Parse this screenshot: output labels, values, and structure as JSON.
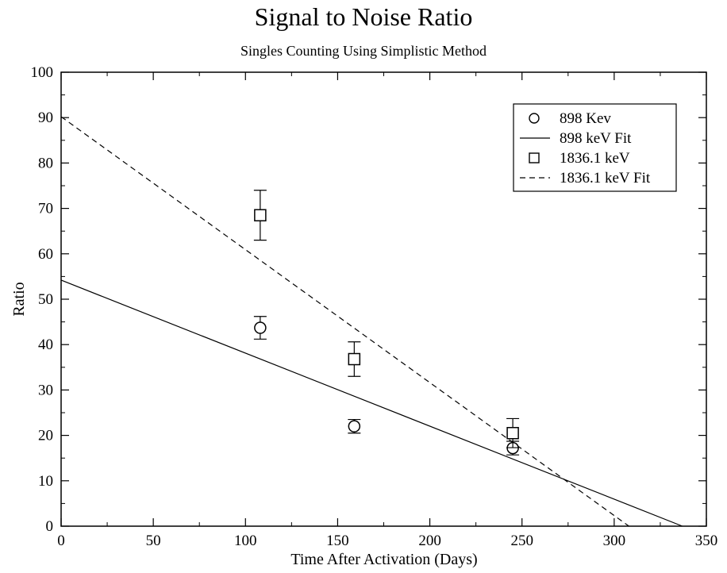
{
  "chart_data": {
    "type": "scatter",
    "title": "Signal to Noise Ratio",
    "subtitle": "Singles Counting Using Simplistic Method",
    "xlabel": "Time After Activation (Days)",
    "ylabel": "Ratio",
    "xlim": [
      0,
      350
    ],
    "ylim": [
      0,
      100
    ],
    "x_ticks": [
      0,
      50,
      100,
      150,
      200,
      250,
      300,
      350
    ],
    "y_ticks": [
      0,
      10,
      20,
      30,
      40,
      50,
      60,
      70,
      80,
      90,
      100
    ],
    "grid": false,
    "legend_position": "top-right",
    "series": [
      {
        "name": "898 Kev",
        "marker": "circle",
        "line": "none",
        "x": [
          108,
          159,
          245
        ],
        "y": [
          43.7,
          22.0,
          17.2
        ],
        "error": [
          2.5,
          1.5,
          1.5
        ]
      },
      {
        "name": "898 keV Fit",
        "marker": "none",
        "line": "solid",
        "x": [
          0,
          337
        ],
        "y": [
          54.2,
          0
        ]
      },
      {
        "name": "1836.1 keV",
        "marker": "square",
        "line": "none",
        "x": [
          108,
          159,
          245
        ],
        "y": [
          68.5,
          36.8,
          20.5
        ],
        "error": [
          5.5,
          3.8,
          3.2
        ]
      },
      {
        "name": "1836.1 keV Fit",
        "marker": "none",
        "line": "dashed",
        "x": [
          0,
          308
        ],
        "y": [
          90.2,
          0
        ]
      }
    ]
  }
}
